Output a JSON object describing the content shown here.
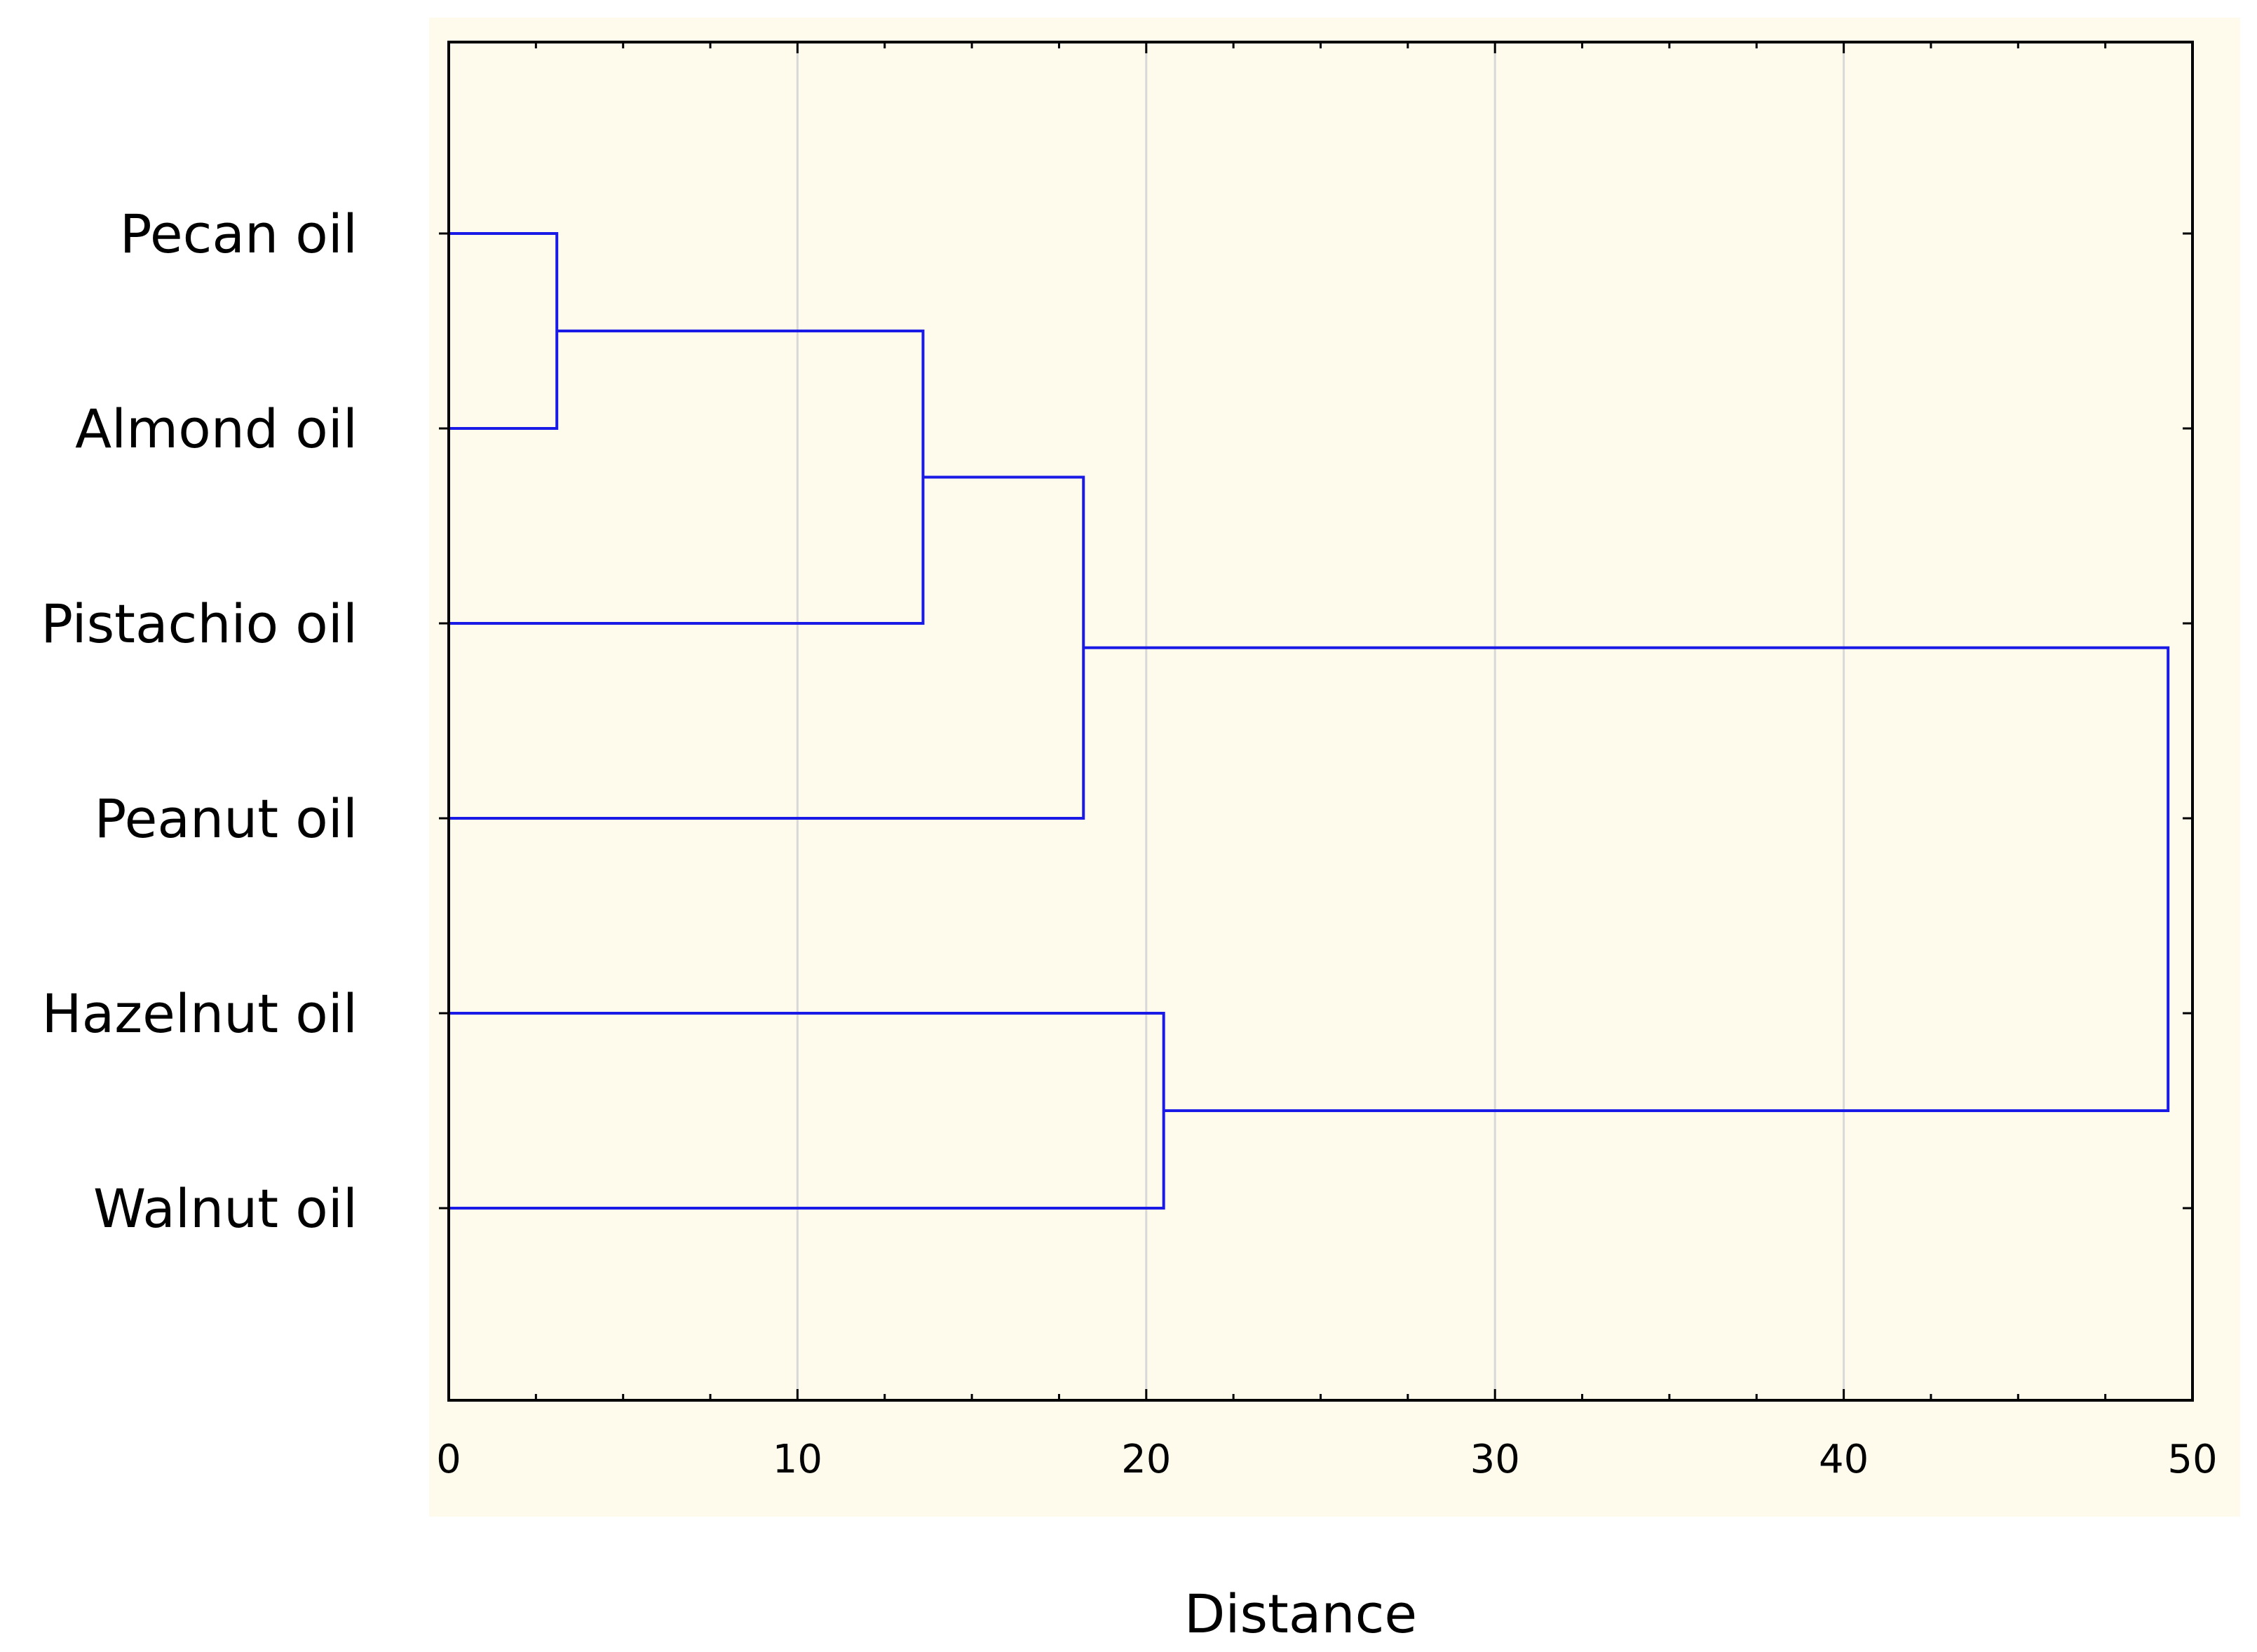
{
  "chart_data": {
    "type": "dendrogram",
    "orientation": "horizontal",
    "title": "",
    "xlabel": "Distance",
    "ylabel": "",
    "xlim": [
      0,
      50
    ],
    "x_ticks": [
      0,
      10,
      20,
      30,
      40,
      50
    ],
    "x_tick_labels": [
      "0",
      "10",
      "20",
      "30",
      "40",
      "50"
    ],
    "grid": true,
    "leaves": [
      "Pecan oil",
      "Almond oil",
      "Pistachio oil",
      "Peanut oil",
      "Hazelnut oil",
      "Walnut oil"
    ],
    "merges": [
      {
        "left": "Pecan oil",
        "right": "Almond oil",
        "distance": 3.1
      },
      {
        "left": "Pecan oil + Almond oil",
        "right": "Pistachio oil",
        "distance": 13.6
      },
      {
        "left": "Pecan oil + Almond oil + Pistachio oil",
        "right": "Peanut oil",
        "distance": 18.2
      },
      {
        "left": "Hazelnut oil",
        "right": "Walnut oil",
        "distance": 20.5
      },
      {
        "left": "Pecan oil + Almond oil + Pistachio oil + Peanut oil",
        "right": "Hazelnut oil + Walnut oil",
        "distance": 49.3
      }
    ],
    "colors": {
      "plot_background": "#fefaec",
      "axis": "#000000",
      "grid": "#d8d8d8",
      "link": "#1a1ae6"
    }
  }
}
